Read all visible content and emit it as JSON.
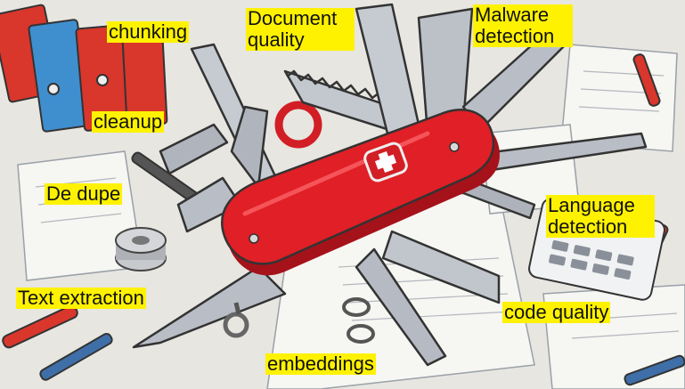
{
  "labels": {
    "chunking": "chunking",
    "document_quality": [
      "Document",
      "quality"
    ],
    "malware_detection": [
      "Malware",
      "detection"
    ],
    "cleanup": "cleanup",
    "de_dupe": "De dupe",
    "language_detection": [
      "Language",
      "detection"
    ],
    "text_extraction": "Text extraction",
    "code_quality": "code quality",
    "embeddings": "embeddings"
  },
  "colors": {
    "label_bg": "#fff200",
    "knife_red": "#e01f26",
    "knife_dark_red": "#a5121a",
    "steel": "#b9bec6",
    "steel_dark": "#7d848f",
    "paper": "#f6f6f2",
    "binder_red": "#d9362c",
    "binder_blue": "#3f8fcf"
  },
  "icons": [
    "swiss-cross-icon"
  ]
}
